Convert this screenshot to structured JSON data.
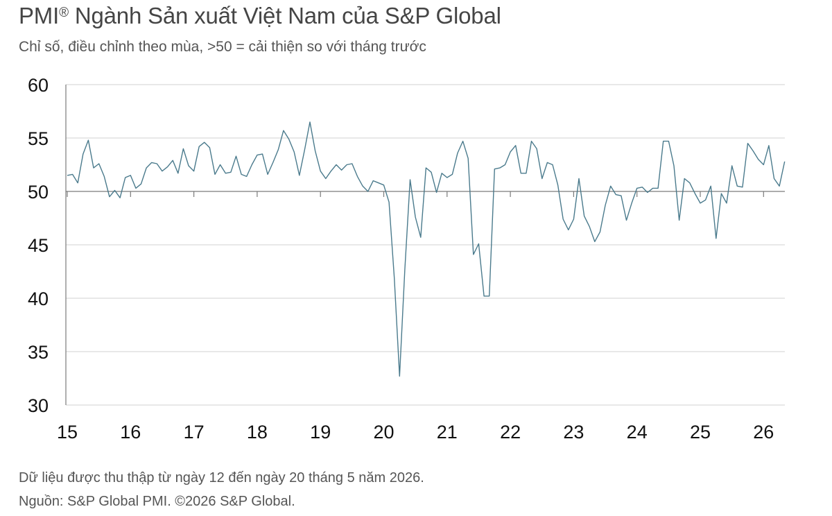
{
  "header": {
    "title": "PMI",
    "title_mark": "®",
    "title_rest": " Ngành Sản xuất Việt Nam của S&P Global",
    "subtitle": "Chỉ số, điều chỉnh theo mùa, >50 = cải thiện so với tháng trước"
  },
  "footer": {
    "note": "Dữ liệu được thu thập từ ngày 12 đến ngày 20 tháng 5 năm 2026.",
    "source": "Nguồn: S&P Global PMI. ©2026 S&P Global."
  },
  "colors": {
    "line": "#4a7a8c",
    "grid": "#d0d0d0",
    "axis": "#7a7a7a",
    "baseline": "#7a7a7a"
  },
  "chart_data": {
    "type": "line",
    "title": "PMI® Ngành Sản xuất Việt Nam của S&P Global",
    "subtitle": "Chỉ số, điều chỉnh theo mùa, >50 = cải thiện so với tháng trước",
    "xlabel": "",
    "ylabel": "",
    "ylim": [
      30,
      60
    ],
    "yticks": [
      30,
      35,
      40,
      45,
      50,
      55,
      60
    ],
    "xticks": [
      "15",
      "16",
      "17",
      "18",
      "19",
      "20",
      "21",
      "22",
      "23",
      "24",
      "25",
      "26"
    ],
    "x_start": "2015-01",
    "grid": true,
    "reference_line": 50,
    "series": [
      {
        "values": [
          51.5,
          51.6,
          50.8,
          53.5,
          54.8,
          52.2,
          52.6,
          51.4,
          49.5,
          50.1,
          49.4,
          51.3,
          51.5,
          50.3,
          50.7,
          52.2,
          52.7,
          52.6,
          51.9,
          52.3,
          52.9,
          51.7,
          54.0,
          52.4,
          51.9,
          54.2,
          54.6,
          54.1,
          51.6,
          52.5,
          51.7,
          51.8,
          53.3,
          51.6,
          51.4,
          52.5,
          53.4,
          53.5,
          51.6,
          52.7,
          53.9,
          55.7,
          54.9,
          53.7,
          51.5,
          53.9,
          56.5,
          53.8,
          51.9,
          51.2,
          51.9,
          52.5,
          52.0,
          52.5,
          52.6,
          51.4,
          50.5,
          50.0,
          51.0,
          50.8,
          50.6,
          49.0,
          41.9,
          32.7,
          42.7,
          51.1,
          47.6,
          45.7,
          52.2,
          51.8,
          49.9,
          51.7,
          51.3,
          51.6,
          53.6,
          54.7,
          53.1,
          44.1,
          45.1,
          40.2,
          40.2,
          52.1,
          52.2,
          52.5,
          53.7,
          54.3,
          51.7,
          51.7,
          54.7,
          54.0,
          51.2,
          52.7,
          52.5,
          50.6,
          47.4,
          46.4,
          47.4,
          51.2,
          47.7,
          46.7,
          45.3,
          46.2,
          48.7,
          50.5,
          49.7,
          49.6,
          47.3,
          48.9,
          50.3,
          50.4,
          49.9,
          50.3,
          50.3,
          54.7,
          54.7,
          52.4,
          47.3,
          51.2,
          50.8,
          49.8,
          48.9,
          49.2,
          50.5,
          45.6,
          49.8,
          48.9,
          52.4,
          50.5,
          50.4,
          54.5,
          53.8,
          53.0,
          52.5,
          54.3,
          51.2,
          50.5,
          52.8
        ]
      }
    ]
  }
}
